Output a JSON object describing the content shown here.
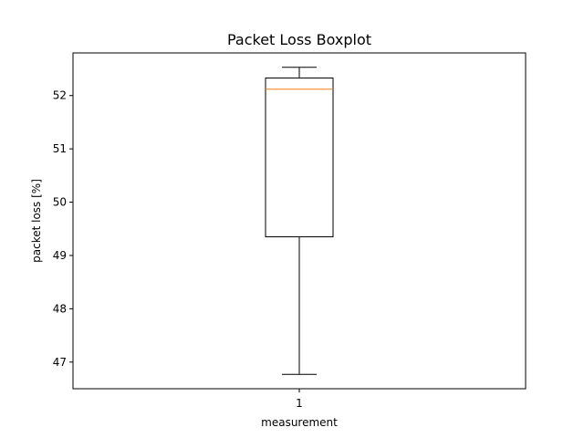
{
  "chart_data": {
    "type": "boxplot",
    "title": "Packet Loss Boxplot",
    "xlabel": "measurement",
    "ylabel": "packet loss [%]",
    "categories": [
      "1"
    ],
    "boxes": [
      {
        "category": "1",
        "whisker_low": 46.77,
        "q1": 49.35,
        "median": 52.12,
        "q3": 52.33,
        "whisker_high": 52.53
      }
    ],
    "ylim": [
      46.5,
      52.8
    ],
    "yticks": [
      47,
      48,
      49,
      50,
      51,
      52
    ],
    "grid": false,
    "colors": {
      "box": "#000000",
      "median": "#ff7f0e",
      "whisker": "#000000"
    }
  }
}
